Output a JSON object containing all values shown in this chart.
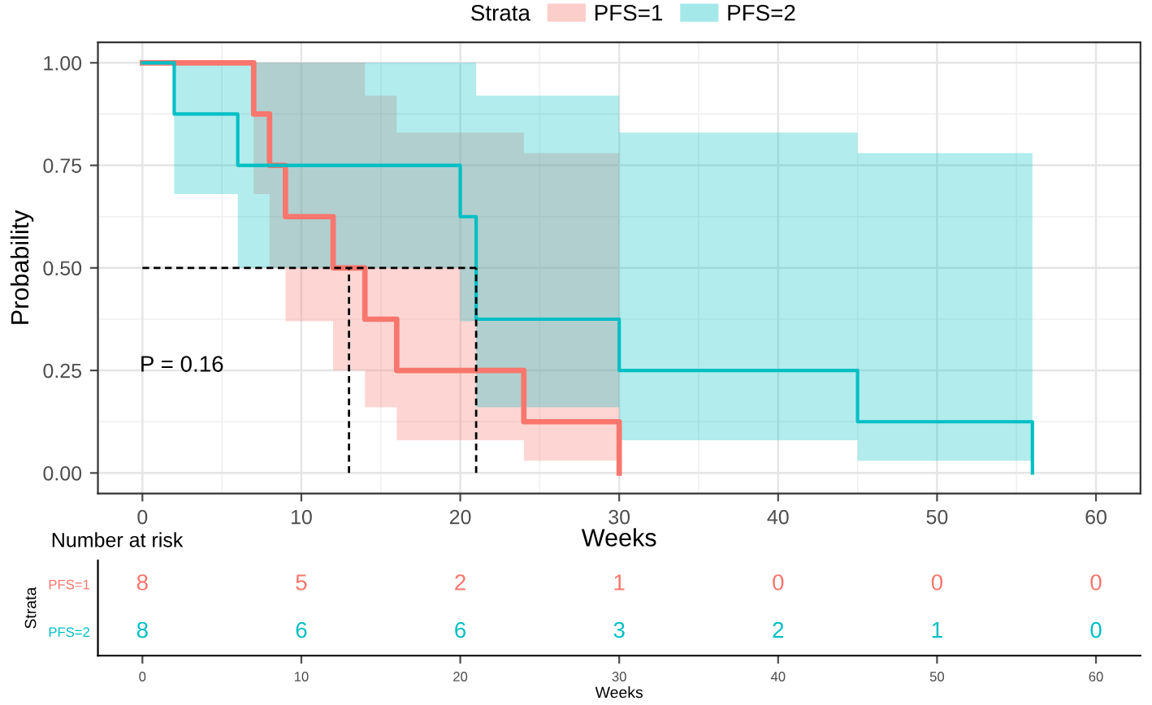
{
  "chart_data": [
    {
      "type": "step",
      "xlabel": "Weeks",
      "ylabel": "Probability",
      "legend_title": "Strata",
      "legend": "top",
      "grid": true,
      "xlim": [
        -2.8,
        62.8
      ],
      "xticks": [
        0,
        10,
        20,
        30,
        40,
        50,
        60
      ],
      "ylim": [
        -0.05,
        1.05
      ],
      "yticks": [
        {
          "value": 0,
          "label": "0.00"
        },
        {
          "value": 0.25,
          "label": "0.25"
        },
        {
          "value": 0.5,
          "label": "0.50"
        },
        {
          "value": 0.75,
          "label": "0.75"
        },
        {
          "value": 1,
          "label": "1.00"
        }
      ],
      "series": [
        {
          "name": "PFS=1",
          "color": "#f8766d",
          "x": [
            0,
            7,
            8,
            9,
            12,
            14,
            16,
            24,
            30
          ],
          "values": [
            1,
            0.875,
            0.75,
            0.625,
            0.5,
            0.375,
            0.25,
            0.125,
            0
          ],
          "lower": [
            1,
            0.68,
            0.5,
            0.37,
            0.25,
            0.16,
            0.08,
            0.03,
            0.03
          ],
          "upper": [
            1,
            1,
            1,
            1,
            1,
            0.92,
            0.83,
            0.78,
            0.78
          ]
        },
        {
          "name": "PFS=2",
          "color": "#00bfc4",
          "x": [
            0,
            2,
            6,
            20,
            21,
            30,
            45,
            56
          ],
          "values": [
            1,
            0.875,
            0.75,
            0.625,
            0.375,
            0.25,
            0.125,
            0
          ],
          "lower": [
            1,
            0.68,
            0.5,
            0.37,
            0.16,
            0.08,
            0.03,
            0.03
          ],
          "upper": [
            1,
            1,
            1,
            1,
            0.92,
            0.83,
            0.78,
            0.78
          ]
        }
      ],
      "ref_lines": [
        {
          "axis": "y",
          "value": 0.5,
          "line_style": "dashed",
          "color": "#000000"
        },
        {
          "axis": "x",
          "value": 13,
          "line_style": "dashed",
          "color": "#000000"
        },
        {
          "axis": "x",
          "value": 21,
          "line_style": "dashed",
          "color": "#000000"
        }
      ],
      "annotations": [
        "P = 0.16"
      ]
    },
    {
      "type": "heatmap",
      "title": "Number at risk",
      "xlabel": "Weeks",
      "ylabel": "Strata",
      "data_labels": true,
      "categories": [
        "0",
        "10",
        "20",
        "30",
        "40",
        "50",
        "60"
      ],
      "y_categories": [
        "PFS=1",
        "PFS=2"
      ],
      "colors": [
        "#f8766d",
        "#00bfc4"
      ],
      "cells": [
        [
          8,
          5,
          2,
          1,
          0,
          0,
          0
        ],
        [
          8,
          6,
          6,
          3,
          2,
          1,
          0
        ]
      ]
    }
  ]
}
